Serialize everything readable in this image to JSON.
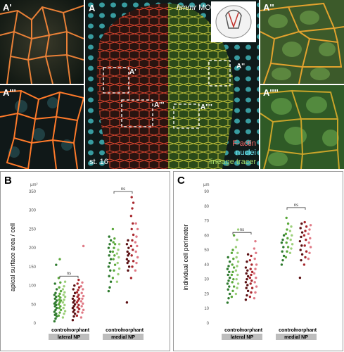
{
  "figure": {
    "panel_A": {
      "label": "A",
      "title_italic": "hmmr",
      "title_rest": " MO",
      "stage": "st. 16",
      "box_labels": [
        "A'",
        "A''",
        "A'''",
        "A''''"
      ],
      "legend": [
        {
          "text": "F-actin",
          "color": "#ff6e6e"
        },
        {
          "text": "nuclei",
          "color": "#6fe0ef"
        },
        {
          "text": "lineage tracer",
          "color": "#9fd86a"
        }
      ]
    },
    "insets": {
      "a1": "A'",
      "a2": "A''",
      "a3": "A'''",
      "a4": "A''''"
    },
    "panel_B": {
      "label": "B"
    },
    "panel_C": {
      "label": "C"
    }
  },
  "chart_data": [
    {
      "type": "scatter",
      "panel": "B",
      "ylabel": "apical surface area / cell",
      "unit": "µm²",
      "ylim": [
        0,
        350
      ],
      "yticks": [
        0,
        50,
        100,
        150,
        200,
        250,
        300,
        350
      ],
      "groups": [
        {
          "name": "control",
          "region": "lateral NP"
        },
        {
          "name": "morphant",
          "region": "lateral NP"
        },
        {
          "name": "control",
          "region": "medial NP"
        },
        {
          "name": "morphant",
          "region": "medial NP"
        }
      ],
      "region_labels": [
        "lateral NP",
        "medial NP"
      ],
      "significance": [
        {
          "label": "ns",
          "y": 125
        },
        {
          "label": "ns",
          "y": 385
        }
      ],
      "series": [
        {
          "name": "lateral control 1",
          "color": "#2e7a2e",
          "values": [
            5,
            12,
            18,
            22,
            25,
            30,
            35,
            40,
            45,
            48,
            52,
            55,
            60,
            65,
            70,
            75,
            80,
            90,
            105,
            155
          ]
        },
        {
          "name": "lateral control 2",
          "color": "#5aa83a",
          "values": [
            20,
            28,
            35,
            40,
            45,
            50,
            55,
            60,
            62,
            68,
            72,
            78,
            85,
            95,
            108,
            120,
            170
          ]
        },
        {
          "name": "lateral control 3",
          "color": "#9cd07a",
          "values": [
            15,
            25,
            32,
            40,
            48,
            55,
            62,
            70,
            75,
            82,
            90,
            98,
            110
          ]
        },
        {
          "name": "lateral morphant 1",
          "color": "#5b0f12",
          "values": [
            8,
            18,
            25,
            30,
            35,
            40,
            45,
            50,
            55,
            60,
            65,
            72,
            80,
            90,
            100
          ]
        },
        {
          "name": "lateral morphant 2",
          "color": "#a8282e",
          "values": [
            20,
            30,
            38,
            42,
            48,
            55,
            60,
            65,
            70,
            75,
            82,
            88,
            95,
            105,
            115
          ]
        },
        {
          "name": "lateral morphant 3",
          "color": "#e07a86",
          "values": [
            15,
            28,
            35,
            45,
            52,
            58,
            65,
            72,
            80,
            90,
            98,
            108,
            205
          ]
        },
        {
          "name": "medial control 1",
          "color": "#2e7a2e",
          "values": [
            85,
            95,
            110,
            125,
            140,
            150,
            160,
            170,
            180,
            190,
            200,
            210,
            220,
            230
          ]
        },
        {
          "name": "medial control 2",
          "color": "#5aa83a",
          "values": [
            120,
            140,
            155,
            170,
            180,
            190,
            200,
            210,
            215,
            225,
            250
          ]
        },
        {
          "name": "medial control 3",
          "color": "#9cd07a",
          "values": [
            110,
            130,
            145,
            160,
            175,
            185,
            195,
            210
          ]
        },
        {
          "name": "medial morphant 1",
          "color": "#5b0f12",
          "values": [
            55,
            140,
            150,
            160,
            165,
            170,
            180,
            185,
            190,
            200,
            210,
            220
          ]
        },
        {
          "name": "medial morphant 2",
          "color": "#a8282e",
          "values": [
            120,
            150,
            165,
            180,
            195,
            205,
            220,
            235,
            250,
            265,
            285,
            305,
            320,
            335
          ]
        },
        {
          "name": "medial morphant 3",
          "color": "#e07a86",
          "values": [
            140,
            160,
            175,
            190,
            205,
            215,
            230,
            250,
            265
          ]
        }
      ]
    },
    {
      "type": "scatter",
      "panel": "C",
      "ylabel": "individual cell perimeter",
      "unit": "µm",
      "ylim": [
        0,
        90
      ],
      "yticks": [
        0,
        10,
        20,
        30,
        40,
        50,
        60,
        70,
        80,
        90
      ],
      "groups": [
        {
          "name": "control",
          "region": "lateral NP"
        },
        {
          "name": "morphant",
          "region": "lateral NP"
        },
        {
          "name": "control",
          "region": "medial NP"
        },
        {
          "name": "morphant",
          "region": "medial NP"
        }
      ],
      "region_labels": [
        "lateral NP",
        "medial NP"
      ],
      "significance": [
        {
          "label": "ns",
          "y": 62
        },
        {
          "label": "ns",
          "y": 79
        }
      ],
      "series": [
        {
          "name": "lateral control 1",
          "color": "#2e7a2e",
          "values": [
            14,
            17,
            20,
            23,
            25,
            27,
            29,
            31,
            33,
            35,
            37,
            39,
            42,
            45
          ]
        },
        {
          "name": "lateral control 2",
          "color": "#5aa83a",
          "values": [
            18,
            22,
            25,
            28,
            30,
            33,
            35,
            38,
            40,
            44,
            48,
            50,
            60
          ]
        },
        {
          "name": "lateral control 3",
          "color": "#9cd07a",
          "values": [
            20,
            24,
            27,
            30,
            33,
            36,
            39,
            42,
            45,
            48,
            52,
            57,
            64
          ]
        },
        {
          "name": "lateral morphant 1",
          "color": "#5b0f12",
          "values": [
            16,
            19,
            22,
            24,
            26,
            28,
            30,
            32,
            34,
            36,
            38,
            42,
            47
          ]
        },
        {
          "name": "lateral morphant 2",
          "color": "#a8282e",
          "values": [
            18,
            21,
            24,
            27,
            29,
            31,
            33,
            35,
            37,
            40,
            43,
            46
          ]
        },
        {
          "name": "lateral morphant 3",
          "color": "#e07a86",
          "values": [
            17,
            21,
            25,
            28,
            31,
            34,
            37,
            40,
            44,
            48,
            51,
            56
          ]
        },
        {
          "name": "medial control 1",
          "color": "#2e7a2e",
          "values": [
            40,
            43,
            46,
            49,
            52,
            55,
            57,
            60
          ]
        },
        {
          "name": "medial control 2",
          "color": "#5aa83a",
          "values": [
            45,
            49,
            52,
            55,
            58,
            61,
            64,
            68,
            72
          ]
        },
        {
          "name": "medial control 3",
          "color": "#9cd07a",
          "values": [
            48,
            51,
            54,
            57,
            60,
            63,
            66
          ]
        },
        {
          "name": "medial morphant 1",
          "color": "#5b0f12",
          "values": [
            31,
            43,
            47,
            50,
            53,
            56,
            59,
            62,
            65,
            68
          ]
        },
        {
          "name": "medial morphant 2",
          "color": "#a8282e",
          "values": [
            40,
            45,
            49,
            53,
            57,
            60,
            63,
            66,
            69
          ]
        },
        {
          "name": "medial morphant 3",
          "color": "#e07a86",
          "values": [
            44,
            48,
            52,
            55,
            58,
            61,
            64,
            67
          ]
        }
      ]
    }
  ]
}
